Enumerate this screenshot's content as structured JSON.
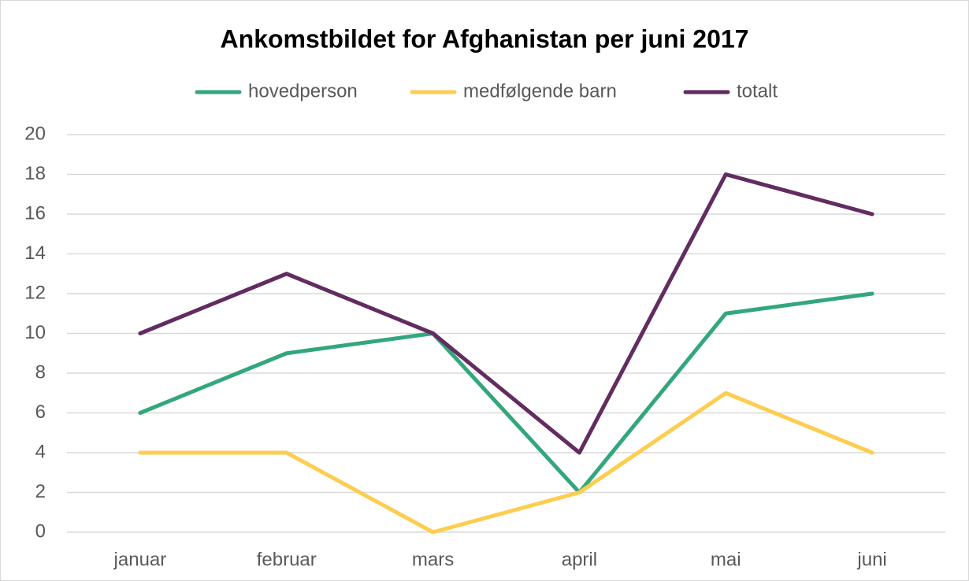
{
  "chart_data": {
    "type": "line",
    "title": "Ankomstbildet for Afghanistan per juni 2017",
    "categories": [
      "januar",
      "februar",
      "mars",
      "april",
      "mai",
      "juni"
    ],
    "series": [
      {
        "name": "hovedperson",
        "color": "#33a77c",
        "values": [
          6,
          9,
          10,
          2,
          11,
          12
        ]
      },
      {
        "name": "medfølgende barn",
        "color": "#fdcd4f",
        "values": [
          4,
          4,
          0,
          2,
          7,
          4
        ]
      },
      {
        "name": "totalt",
        "color": "#622c60",
        "values": [
          10,
          13,
          10,
          4,
          18,
          16
        ]
      }
    ],
    "ylim": [
      0,
      20
    ],
    "yticks": [
      0,
      2,
      4,
      6,
      8,
      10,
      12,
      14,
      16,
      18,
      20
    ],
    "grid": true,
    "legend": "top"
  }
}
